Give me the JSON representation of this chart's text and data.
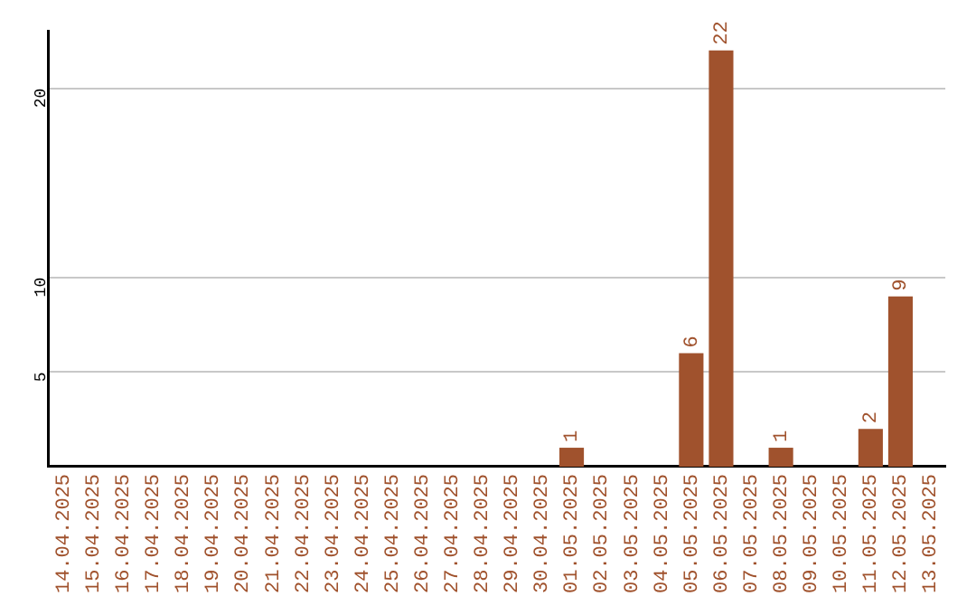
{
  "chart_data": {
    "type": "bar",
    "categories": [
      "14.04.2025",
      "15.04.2025",
      "16.04.2025",
      "17.04.2025",
      "18.04.2025",
      "19.04.2025",
      "20.04.2025",
      "21.04.2025",
      "22.04.2025",
      "23.04.2025",
      "24.04.2025",
      "25.04.2025",
      "26.04.2025",
      "27.04.2025",
      "28.04.2025",
      "29.04.2025",
      "30.04.2025",
      "01.05.2025",
      "02.05.2025",
      "03.05.2025",
      "04.05.2025",
      "05.05.2025",
      "06.05.2025",
      "07.05.2025",
      "08.05.2025",
      "09.05.2025",
      "10.05.2025",
      "11.05.2025",
      "12.05.2025",
      "13.05.2025"
    ],
    "values": [
      0,
      0,
      0,
      0,
      0,
      0,
      0,
      0,
      0,
      0,
      0,
      0,
      0,
      0,
      0,
      0,
      0,
      1,
      0,
      0,
      0,
      6,
      22,
      0,
      1,
      0,
      0,
      2,
      9,
      0
    ],
    "value_labels": [
      null,
      null,
      null,
      null,
      null,
      null,
      null,
      null,
      null,
      null,
      null,
      null,
      null,
      null,
      null,
      null,
      null,
      "1",
      null,
      null,
      null,
      "6",
      "22",
      null,
      "1",
      null,
      null,
      "2",
      "9",
      null
    ],
    "color": "#a0522d",
    "ylim": [
      0,
      23
    ],
    "yticks": [
      5,
      10,
      20
    ],
    "grid": "y",
    "legend": false
  }
}
